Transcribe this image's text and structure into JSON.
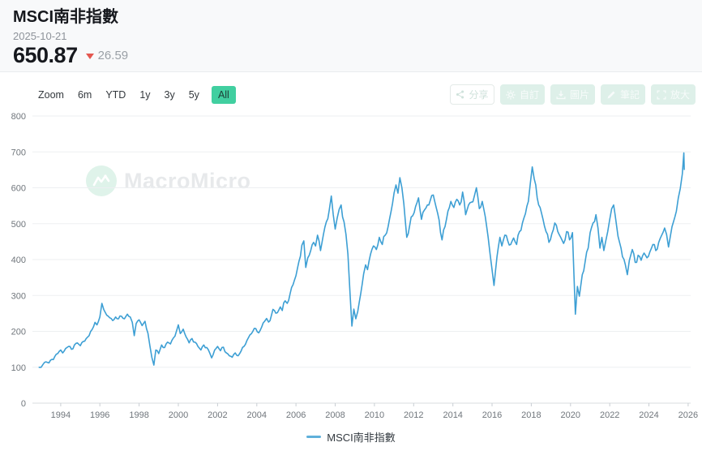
{
  "header": {
    "title": "MSCI南非指數",
    "date": "2025-10-21",
    "price": "650.87",
    "change": "26.59",
    "change_direction": "down"
  },
  "toolbar": {
    "zoom_label": "Zoom",
    "ranges": [
      "6m",
      "YTD",
      "1y",
      "3y",
      "5y",
      "All"
    ],
    "active_range": "All",
    "buttons": [
      {
        "label": "分享",
        "icon": "share-icon"
      },
      {
        "label": "自訂",
        "icon": "gear-icon"
      },
      {
        "label": "圖片",
        "icon": "image-icon"
      },
      {
        "label": "筆記",
        "icon": "pencil-icon"
      },
      {
        "label": "放大",
        "icon": "expand-icon"
      }
    ]
  },
  "watermark": {
    "text": "MacroMicro",
    "logo": "macromicro-logo"
  },
  "legend": {
    "series_label": "MSCI南非指數",
    "color": "#5fb0da"
  },
  "colors": {
    "accent_green": "#41cfa0",
    "line_blue": "#3d9fd4",
    "change_red": "#e4574f",
    "header_bg": "#f8f9fa",
    "grid": "#edeff1"
  },
  "chart_data": {
    "type": "line",
    "title": "MSCI南非指數",
    "xlabel": "",
    "ylabel": "",
    "grid": "horizontal",
    "legend_position": "bottom",
    "x_ticks": [
      1994,
      1996,
      1998,
      2000,
      2002,
      2004,
      2006,
      2008,
      2010,
      2012,
      2014,
      2016,
      2018,
      2020,
      2022,
      2024,
      2026
    ],
    "y_ticks": [
      0,
      100,
      200,
      300,
      400,
      500,
      600,
      700,
      800
    ],
    "x_range": [
      1992.6,
      2026.4
    ],
    "y_range": [
      0,
      800
    ],
    "series": [
      {
        "name": "MSCI南非指數",
        "color": "#3d9fd4",
        "points": [
          [
            1992.9,
            100
          ],
          [
            1993.1,
            108
          ],
          [
            1993.25,
            115
          ],
          [
            1993.4,
            112
          ],
          [
            1993.55,
            122
          ],
          [
            1993.7,
            130
          ],
          [
            1993.85,
            138
          ],
          [
            1994.0,
            148
          ],
          [
            1994.1,
            140
          ],
          [
            1994.25,
            152
          ],
          [
            1994.4,
            158
          ],
          [
            1994.55,
            150
          ],
          [
            1994.7,
            162
          ],
          [
            1994.85,
            168
          ],
          [
            1995.0,
            160
          ],
          [
            1995.15,
            172
          ],
          [
            1995.3,
            180
          ],
          [
            1995.45,
            188
          ],
          [
            1995.6,
            205
          ],
          [
            1995.75,
            225
          ],
          [
            1995.85,
            218
          ],
          [
            1996.0,
            240
          ],
          [
            1996.1,
            278
          ],
          [
            1996.2,
            260
          ],
          [
            1996.35,
            245
          ],
          [
            1996.5,
            238
          ],
          [
            1996.65,
            230
          ],
          [
            1996.8,
            240
          ],
          [
            1996.95,
            235
          ],
          [
            1997.1,
            242
          ],
          [
            1997.25,
            235
          ],
          [
            1997.4,
            248
          ],
          [
            1997.55,
            240
          ],
          [
            1997.65,
            225
          ],
          [
            1997.75,
            188
          ],
          [
            1997.85,
            222
          ],
          [
            1998.0,
            232
          ],
          [
            1998.15,
            216
          ],
          [
            1998.3,
            228
          ],
          [
            1998.45,
            195
          ],
          [
            1998.55,
            160
          ],
          [
            1998.65,
            128
          ],
          [
            1998.75,
            106
          ],
          [
            1998.85,
            148
          ],
          [
            1999.0,
            138
          ],
          [
            1999.15,
            162
          ],
          [
            1999.3,
            155
          ],
          [
            1999.45,
            170
          ],
          [
            1999.6,
            165
          ],
          [
            1999.75,
            182
          ],
          [
            1999.9,
            200
          ],
          [
            2000.0,
            218
          ],
          [
            2000.1,
            194
          ],
          [
            2000.25,
            206
          ],
          [
            2000.4,
            184
          ],
          [
            2000.55,
            168
          ],
          [
            2000.7,
            180
          ],
          [
            2000.85,
            170
          ],
          [
            2001.0,
            158
          ],
          [
            2001.15,
            148
          ],
          [
            2001.3,
            162
          ],
          [
            2001.45,
            155
          ],
          [
            2001.6,
            140
          ],
          [
            2001.7,
            126
          ],
          [
            2001.85,
            148
          ],
          [
            2002.0,
            158
          ],
          [
            2002.15,
            146
          ],
          [
            2002.3,
            156
          ],
          [
            2002.45,
            140
          ],
          [
            2002.6,
            132
          ],
          [
            2002.75,
            128
          ],
          [
            2002.9,
            140
          ],
          [
            2003.05,
            132
          ],
          [
            2003.2,
            145
          ],
          [
            2003.35,
            158
          ],
          [
            2003.5,
            175
          ],
          [
            2003.65,
            190
          ],
          [
            2003.8,
            200
          ],
          [
            2003.95,
            208
          ],
          [
            2004.1,
            196
          ],
          [
            2004.25,
            212
          ],
          [
            2004.4,
            228
          ],
          [
            2004.5,
            236
          ],
          [
            2004.6,
            226
          ],
          [
            2004.75,
            245
          ],
          [
            2004.9,
            258
          ],
          [
            2005.05,
            252
          ],
          [
            2005.2,
            268
          ],
          [
            2005.3,
            258
          ],
          [
            2005.45,
            285
          ],
          [
            2005.55,
            278
          ],
          [
            2005.7,
            305
          ],
          [
            2005.85,
            330
          ],
          [
            2006.0,
            355
          ],
          [
            2006.15,
            395
          ],
          [
            2006.3,
            440
          ],
          [
            2006.4,
            452
          ],
          [
            2006.5,
            378
          ],
          [
            2006.6,
            405
          ],
          [
            2006.75,
            425
          ],
          [
            2006.9,
            448
          ],
          [
            2007.0,
            438
          ],
          [
            2007.1,
            468
          ],
          [
            2007.25,
            425
          ],
          [
            2007.4,
            470
          ],
          [
            2007.55,
            505
          ],
          [
            2007.7,
            540
          ],
          [
            2007.8,
            577
          ],
          [
            2007.9,
            525
          ],
          [
            2008.0,
            485
          ],
          [
            2008.1,
            515
          ],
          [
            2008.2,
            540
          ],
          [
            2008.3,
            552
          ],
          [
            2008.45,
            505
          ],
          [
            2008.55,
            470
          ],
          [
            2008.65,
            415
          ],
          [
            2008.75,
            310
          ],
          [
            2008.85,
            215
          ],
          [
            2008.95,
            262
          ],
          [
            2009.05,
            235
          ],
          [
            2009.15,
            255
          ],
          [
            2009.3,
            305
          ],
          [
            2009.45,
            360
          ],
          [
            2009.55,
            385
          ],
          [
            2009.65,
            372
          ],
          [
            2009.8,
            415
          ],
          [
            2009.95,
            438
          ],
          [
            2010.1,
            428
          ],
          [
            2010.25,
            462
          ],
          [
            2010.4,
            442
          ],
          [
            2010.55,
            468
          ],
          [
            2010.7,
            492
          ],
          [
            2010.85,
            535
          ],
          [
            2011.0,
            585
          ],
          [
            2011.1,
            608
          ],
          [
            2011.2,
            585
          ],
          [
            2011.3,
            628
          ],
          [
            2011.4,
            600
          ],
          [
            2011.5,
            555
          ],
          [
            2011.65,
            462
          ],
          [
            2011.8,
            495
          ],
          [
            2011.95,
            522
          ],
          [
            2012.1,
            548
          ],
          [
            2012.25,
            572
          ],
          [
            2012.4,
            512
          ],
          [
            2012.55,
            538
          ],
          [
            2012.7,
            552
          ],
          [
            2012.85,
            565
          ],
          [
            2013.0,
            580
          ],
          [
            2013.15,
            545
          ],
          [
            2013.3,
            510
          ],
          [
            2013.45,
            455
          ],
          [
            2013.6,
            492
          ],
          [
            2013.75,
            535
          ],
          [
            2013.9,
            562
          ],
          [
            2014.05,
            545
          ],
          [
            2014.2,
            568
          ],
          [
            2014.35,
            552
          ],
          [
            2014.5,
            588
          ],
          [
            2014.65,
            525
          ],
          [
            2014.8,
            552
          ],
          [
            2014.95,
            560
          ],
          [
            2015.1,
            578
          ],
          [
            2015.2,
            600
          ],
          [
            2015.35,
            542
          ],
          [
            2015.5,
            562
          ],
          [
            2015.65,
            520
          ],
          [
            2015.8,
            462
          ],
          [
            2015.9,
            415
          ],
          [
            2016.0,
            372
          ],
          [
            2016.1,
            328
          ],
          [
            2016.25,
            408
          ],
          [
            2016.4,
            462
          ],
          [
            2016.5,
            438
          ],
          [
            2016.65,
            468
          ],
          [
            2016.8,
            452
          ],
          [
            2016.95,
            442
          ],
          [
            2017.1,
            460
          ],
          [
            2017.25,
            442
          ],
          [
            2017.4,
            478
          ],
          [
            2017.55,
            502
          ],
          [
            2017.7,
            528
          ],
          [
            2017.85,
            562
          ],
          [
            2017.95,
            612
          ],
          [
            2018.05,
            658
          ],
          [
            2018.15,
            625
          ],
          [
            2018.3,
            572
          ],
          [
            2018.45,
            545
          ],
          [
            2018.6,
            512
          ],
          [
            2018.75,
            478
          ],
          [
            2018.9,
            448
          ],
          [
            2019.05,
            472
          ],
          [
            2019.2,
            502
          ],
          [
            2019.35,
            478
          ],
          [
            2019.5,
            462
          ],
          [
            2019.65,
            445
          ],
          [
            2019.8,
            478
          ],
          [
            2019.95,
            455
          ],
          [
            2020.1,
            475
          ],
          [
            2020.25,
            248
          ],
          [
            2020.35,
            325
          ],
          [
            2020.45,
            298
          ],
          [
            2020.6,
            358
          ],
          [
            2020.75,
            395
          ],
          [
            2020.9,
            432
          ],
          [
            2021.0,
            475
          ],
          [
            2021.15,
            502
          ],
          [
            2021.3,
            525
          ],
          [
            2021.4,
            488
          ],
          [
            2021.5,
            432
          ],
          [
            2021.6,
            462
          ],
          [
            2021.7,
            425
          ],
          [
            2021.8,
            452
          ],
          [
            2021.9,
            478
          ],
          [
            2022.0,
            512
          ],
          [
            2022.1,
            542
          ],
          [
            2022.2,
            552
          ],
          [
            2022.35,
            495
          ],
          [
            2022.5,
            448
          ],
          [
            2022.65,
            408
          ],
          [
            2022.8,
            385
          ],
          [
            2022.9,
            358
          ],
          [
            2023.0,
            398
          ],
          [
            2023.15,
            428
          ],
          [
            2023.3,
            392
          ],
          [
            2023.45,
            412
          ],
          [
            2023.6,
            398
          ],
          [
            2023.75,
            418
          ],
          [
            2023.9,
            405
          ],
          [
            2024.05,
            422
          ],
          [
            2024.2,
            442
          ],
          [
            2024.35,
            425
          ],
          [
            2024.5,
            448
          ],
          [
            2024.65,
            468
          ],
          [
            2024.8,
            488
          ],
          [
            2024.9,
            470
          ],
          [
            2025.0,
            435
          ],
          [
            2025.1,
            468
          ],
          [
            2025.25,
            505
          ],
          [
            2025.4,
            535
          ],
          [
            2025.5,
            572
          ],
          [
            2025.6,
            598
          ],
          [
            2025.7,
            638
          ],
          [
            2025.78,
            697
          ],
          [
            2025.8,
            651
          ]
        ]
      }
    ]
  }
}
